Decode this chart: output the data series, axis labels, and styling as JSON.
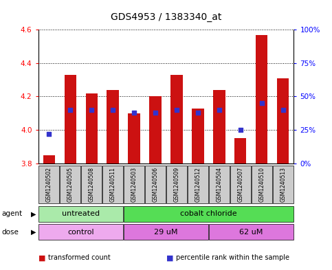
{
  "title": "GDS4953 / 1383340_at",
  "samples": [
    "GSM1240502",
    "GSM1240505",
    "GSM1240508",
    "GSM1240511",
    "GSM1240503",
    "GSM1240506",
    "GSM1240509",
    "GSM1240512",
    "GSM1240504",
    "GSM1240507",
    "GSM1240510",
    "GSM1240513"
  ],
  "transformed_count": [
    3.85,
    4.33,
    4.22,
    4.24,
    4.1,
    4.2,
    4.33,
    4.13,
    4.24,
    3.95,
    4.57,
    4.31
  ],
  "percentile_rank": [
    22,
    40,
    40,
    40,
    38,
    38,
    40,
    38,
    40,
    25,
    45,
    40
  ],
  "bar_base": 3.8,
  "ylim_left": [
    3.8,
    4.6
  ],
  "ylim_right": [
    0,
    100
  ],
  "yticks_left": [
    3.8,
    4.0,
    4.2,
    4.4,
    4.6
  ],
  "yticks_right": [
    0,
    25,
    50,
    75,
    100
  ],
  "bar_color": "#cc1111",
  "blue_marker_color": "#3333cc",
  "agent_groups": [
    {
      "label": "untreated",
      "start": 0,
      "end": 4,
      "color": "#aaeaaa"
    },
    {
      "label": "cobalt chloride",
      "start": 4,
      "end": 12,
      "color": "#55dd55"
    }
  ],
  "dose_groups": [
    {
      "label": "control",
      "start": 0,
      "end": 4,
      "color": "#eeaaee"
    },
    {
      "label": "29 uM",
      "start": 4,
      "end": 8,
      "color": "#dd77dd"
    },
    {
      "label": "62 uM",
      "start": 8,
      "end": 12,
      "color": "#dd77dd"
    }
  ],
  "legend_items": [
    {
      "label": "transformed count",
      "color": "#cc1111"
    },
    {
      "label": "percentile rank within the sample",
      "color": "#3333cc"
    }
  ],
  "bar_width": 0.55,
  "tick_fontsize": 7.5,
  "sample_fontsize": 5.5,
  "title_fontsize": 10,
  "agent_row_label": "agent",
  "dose_row_label": "dose"
}
